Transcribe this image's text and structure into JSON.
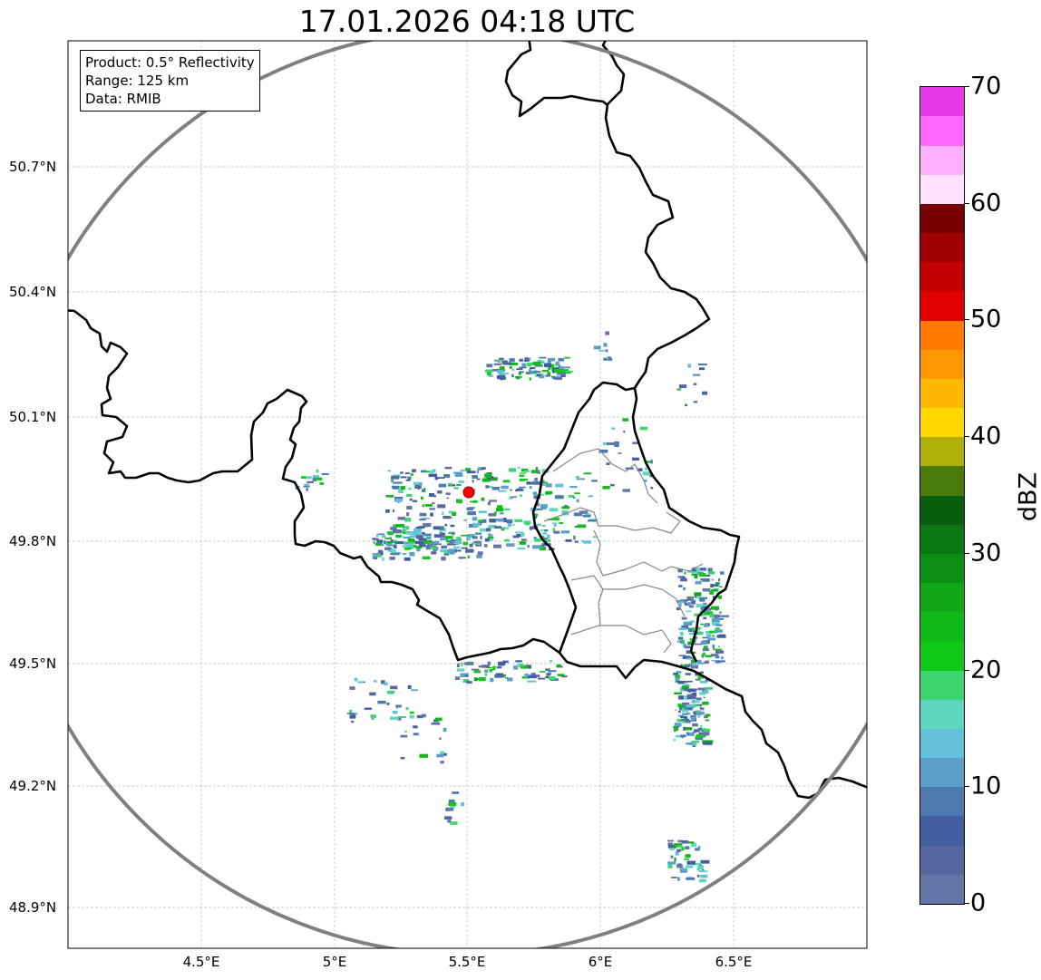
{
  "title": "17.01.2026 04:18 UTC",
  "legend": {
    "product": "Product: 0.5° Reflectivity",
    "range": "Range: 125 km",
    "data": "Data: RMIB"
  },
  "axes": {
    "lon_ticks": [
      "4.5°E",
      "5°E",
      "5.5°E",
      "6°E",
      "6.5°E"
    ],
    "lat_ticks": [
      "50.7°N",
      "50.4°N",
      "50.1°N",
      "49.8°N",
      "49.5°N",
      "49.2°N",
      "48.9°N"
    ]
  },
  "radar_site": {
    "lon": 5.5,
    "lat": 49.91,
    "color": "#ff0000"
  },
  "range_ring_color": "#808080",
  "colorbar": {
    "label": "dBZ",
    "ticks": [
      "0",
      "10",
      "20",
      "30",
      "40",
      "50",
      "60",
      "70"
    ],
    "min": 0,
    "max": 70,
    "step": 2.5,
    "colors": [
      "#6475a8",
      "#54679e",
      "#425ea0",
      "#4c7ab0",
      "#5b9ec8",
      "#64c0dc",
      "#5fd6c0",
      "#3cd66e",
      "#10c818",
      "#10b818",
      "#10a818",
      "#0c9014",
      "#0a7812",
      "#085e0c",
      "#4a7a0a",
      "#b0b008",
      "#ffd800",
      "#ffb800",
      "#ff9800",
      "#ff7c00",
      "#e00000",
      "#c00000",
      "#a00000",
      "#780000",
      "#ffe0ff",
      "#ffb0ff",
      "#ff68ff",
      "#e838e8"
    ]
  }
}
